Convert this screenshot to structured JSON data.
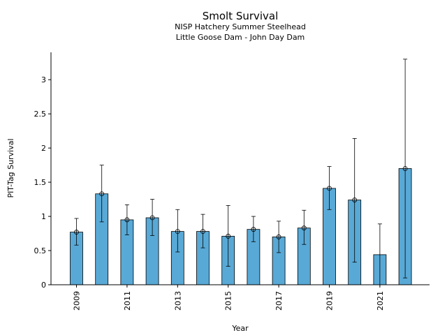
{
  "chart_data": {
    "type": "bar",
    "title": "Smolt Survival",
    "subtitle_lines": [
      "NISP Hatchery Summer Steelhead",
      "Little Goose Dam - John Day Dam"
    ],
    "xlabel": "Year",
    "ylabel": "PIT-Tag Survival",
    "ylim": [
      0,
      3.4
    ],
    "yticks": [
      0,
      0.5,
      1,
      1.5,
      2,
      2.5,
      3
    ],
    "ytick_labels": [
      "0",
      "0.5",
      "1",
      "1.5",
      "2",
      "2.5",
      "3"
    ],
    "categories": [
      2009,
      2010,
      2011,
      2012,
      2013,
      2014,
      2015,
      2016,
      2017,
      2018,
      2019,
      2020,
      2021,
      2022
    ],
    "xtick_labels": [
      "2009",
      "2011",
      "2013",
      "2015",
      "2017",
      "2019",
      "2021"
    ],
    "values": [
      0.77,
      1.33,
      0.95,
      0.98,
      0.78,
      0.78,
      0.71,
      0.81,
      0.7,
      0.83,
      1.41,
      1.24,
      0.44,
      1.7
    ],
    "lower": [
      0.58,
      0.92,
      0.73,
      0.72,
      0.48,
      0.54,
      0.27,
      0.63,
      0.47,
      0.59,
      1.1,
      0.33,
      null,
      0.1
    ],
    "upper": [
      0.97,
      1.75,
      1.17,
      1.25,
      1.1,
      1.03,
      1.16,
      1.0,
      0.93,
      1.09,
      1.73,
      2.14,
      0.89,
      3.3
    ],
    "point_markers": [
      true,
      true,
      true,
      true,
      true,
      true,
      true,
      true,
      true,
      true,
      true,
      true,
      false,
      true
    ],
    "bar_color": "#59A9D6",
    "grid": false,
    "legend": "none"
  }
}
